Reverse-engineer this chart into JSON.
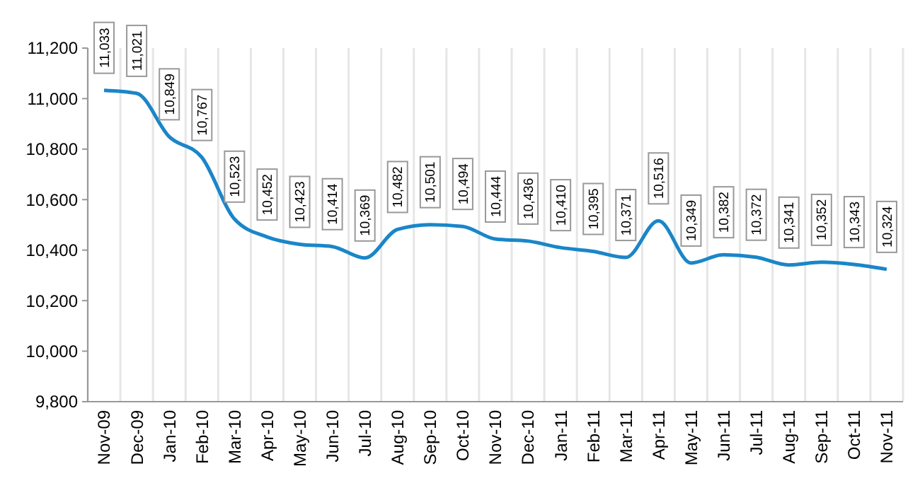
{
  "chart_data": {
    "type": "line",
    "categories": [
      "Nov-09",
      "Dec-09",
      "Jan-10",
      "Feb-10",
      "Mar-10",
      "Apr-10",
      "May-10",
      "Jun-10",
      "Jul-10",
      "Aug-10",
      "Sep-10",
      "Oct-10",
      "Nov-10",
      "Dec-10",
      "Jan-11",
      "Feb-11",
      "Mar-11",
      "Apr-11",
      "May-11",
      "Jun-11",
      "Jul-11",
      "Aug-11",
      "Sep-11",
      "Oct-11",
      "Nov-11"
    ],
    "series": [
      {
        "color": "#1a86c8",
        "values": [
          11033,
          11021,
          10849,
          10767,
          10523,
          10452,
          10423,
          10414,
          10369,
          10482,
          10501,
          10494,
          10444,
          10436,
          10410,
          10395,
          10371,
          10516,
          10349,
          10382,
          10372,
          10341,
          10352,
          10343,
          10324
        ],
        "value_labels": [
          "11,033",
          "11,021",
          "10,849",
          "10,767",
          "10,523",
          "10,452",
          "10,423",
          "10,414",
          "10,369",
          "10,482",
          "10,501",
          "10,494",
          "10,444",
          "10,436",
          "10,410",
          "10,395",
          "10,371",
          "10,516",
          "10,349",
          "10,382",
          "10,372",
          "10,341",
          "10,352",
          "10,343",
          "10,324"
        ]
      }
    ],
    "ylim": [
      9800,
      11200
    ],
    "yticks": [
      {
        "value": 9800,
        "label": "9,800"
      },
      {
        "value": 10000,
        "label": "10,000"
      },
      {
        "value": 10200,
        "label": "10,200"
      },
      {
        "value": 10400,
        "label": "10,400"
      },
      {
        "value": 10600,
        "label": "10,600"
      },
      {
        "value": 10800,
        "label": "10,800"
      },
      {
        "value": 11000,
        "label": "11,000"
      },
      {
        "value": 11200,
        "label": "11,200"
      }
    ],
    "grid": "x",
    "marker": "none",
    "line_style": "solid"
  }
}
